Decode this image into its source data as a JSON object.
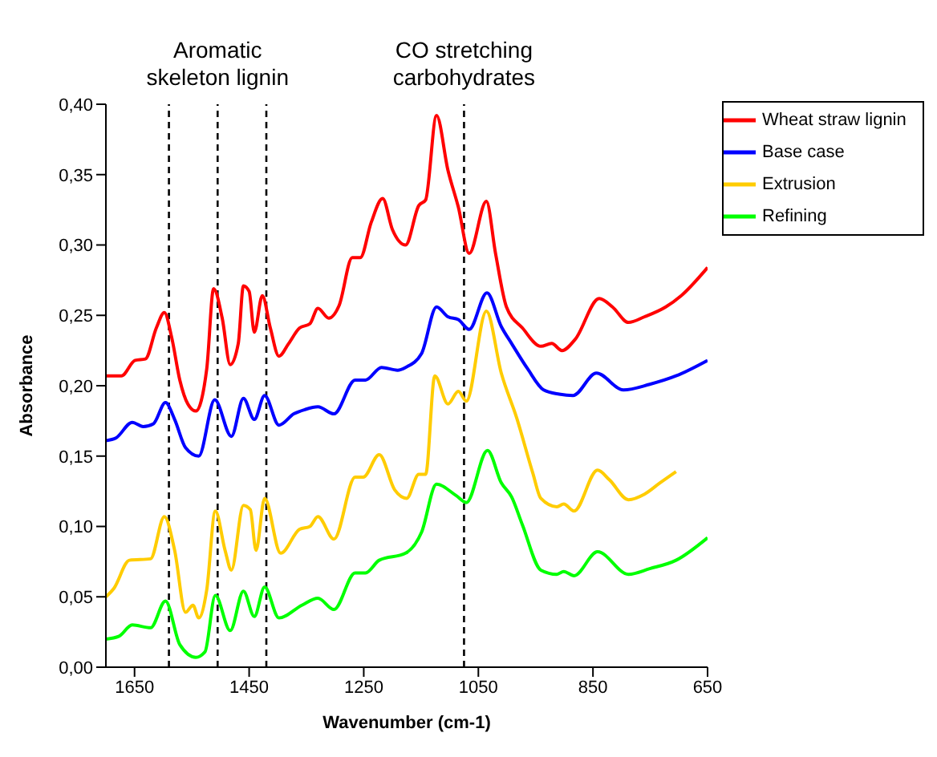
{
  "chart_data": {
    "type": "line",
    "xlabel": "Wavenumber (cm-1)",
    "ylabel": "Absorbance",
    "xlim": [
      1700,
      650
    ],
    "xticks": [
      1650,
      1450,
      1250,
      1050,
      850,
      650
    ],
    "ylim": [
      0,
      0.4
    ],
    "yticks": [
      {
        "value": 0,
        "label": "0,00"
      },
      {
        "value": 0.05,
        "label": "0,05"
      },
      {
        "value": 0.1,
        "label": "0,10"
      },
      {
        "value": 0.15,
        "label": "0,15"
      },
      {
        "value": 0.2,
        "label": "0,20"
      },
      {
        "value": 0.25,
        "label": "0,25"
      },
      {
        "value": 0.3,
        "label": "0,30"
      },
      {
        "value": 0.35,
        "label": "0,35"
      },
      {
        "value": 0.4,
        "label": "0,40"
      }
    ],
    "legend": "top right",
    "grid": false,
    "marker": "none",
    "line_style": "solid",
    "ref_lines": [
      {
        "axis": "x",
        "value": 1590,
        "label": null,
        "line_style": "dashed",
        "color": "#000000"
      },
      {
        "axis": "x",
        "value": 1505,
        "label": "Aromatic skeleton lignin",
        "line_style": "dashed",
        "color": "#000000"
      },
      {
        "axis": "x",
        "value": 1420,
        "label": null,
        "line_style": "dashed",
        "color": "#000000"
      },
      {
        "axis": "x",
        "value": 1075,
        "label": "CO stretching carbohydrates",
        "line_style": "dashed",
        "color": "#000000"
      }
    ],
    "series": [
      {
        "name": "Wheat straw lignin",
        "color": "#ff0000",
        "x": [
          1700,
          1673,
          1649,
          1631,
          1612,
          1598,
          1585,
          1571,
          1557,
          1543,
          1524,
          1512,
          1497,
          1483,
          1469,
          1460,
          1450,
          1441,
          1427,
          1413,
          1398,
          1381,
          1362,
          1344,
          1330,
          1311,
          1293,
          1270,
          1256,
          1237,
          1217,
          1200,
          1177,
          1154,
          1142,
          1123,
          1103,
          1085,
          1066,
          1036,
          1020,
          1001,
          973,
          941,
          922,
          904,
          881,
          839,
          816,
          788,
          760,
          723,
          696,
          650
        ],
        "values": [
          0.207,
          0.207,
          0.218,
          0.219,
          0.241,
          0.252,
          0.234,
          0.204,
          0.187,
          0.182,
          0.212,
          0.269,
          0.248,
          0.215,
          0.23,
          0.271,
          0.267,
          0.238,
          0.264,
          0.241,
          0.221,
          0.23,
          0.241,
          0.244,
          0.255,
          0.248,
          0.257,
          0.291,
          0.291,
          0.316,
          0.333,
          0.311,
          0.3,
          0.328,
          0.332,
          0.392,
          0.353,
          0.327,
          0.294,
          0.331,
          0.294,
          0.256,
          0.241,
          0.228,
          0.23,
          0.225,
          0.233,
          0.262,
          0.256,
          0.245,
          0.249,
          0.256,
          0.264,
          0.284
        ]
      },
      {
        "name": "Base case",
        "color": "#0000ff",
        "x": [
          1700,
          1682,
          1654,
          1635,
          1617,
          1596,
          1580,
          1561,
          1538,
          1510,
          1481,
          1460,
          1441,
          1423,
          1398,
          1372,
          1353,
          1330,
          1302,
          1265,
          1247,
          1219,
          1191,
          1177,
          1149,
          1123,
          1103,
          1085,
          1066,
          1035,
          1010,
          992,
          964,
          936,
          909,
          885,
          844,
          797,
          751,
          705,
          650
        ],
        "values": [
          0.161,
          0.163,
          0.174,
          0.171,
          0.173,
          0.188,
          0.176,
          0.156,
          0.15,
          0.19,
          0.164,
          0.191,
          0.176,
          0.193,
          0.172,
          0.18,
          0.183,
          0.185,
          0.18,
          0.204,
          0.204,
          0.213,
          0.211,
          0.213,
          0.223,
          0.256,
          0.249,
          0.247,
          0.24,
          0.266,
          0.242,
          0.23,
          0.212,
          0.197,
          0.194,
          0.193,
          0.209,
          0.197,
          0.201,
          0.207,
          0.218
        ]
      },
      {
        "name": "Extrusion",
        "color": "#ffcc00",
        "x": [
          1700,
          1686,
          1659,
          1622,
          1598,
          1580,
          1561,
          1548,
          1538,
          1524,
          1509,
          1492,
          1481,
          1460,
          1448,
          1438,
          1423,
          1395,
          1362,
          1344,
          1330,
          1302,
          1265,
          1251,
          1223,
          1196,
          1175,
          1154,
          1142,
          1126,
          1103,
          1085,
          1071,
          1036,
          1010,
          983,
          955,
          941,
          913,
          901,
          883,
          842,
          821,
          788,
          760,
          733,
          705
        ],
        "values": [
          0.05,
          0.056,
          0.076,
          0.077,
          0.107,
          0.083,
          0.039,
          0.044,
          0.035,
          0.055,
          0.111,
          0.083,
          0.069,
          0.115,
          0.112,
          0.083,
          0.12,
          0.081,
          0.098,
          0.1,
          0.107,
          0.091,
          0.135,
          0.135,
          0.151,
          0.126,
          0.12,
          0.137,
          0.137,
          0.207,
          0.187,
          0.196,
          0.189,
          0.253,
          0.209,
          0.177,
          0.138,
          0.12,
          0.114,
          0.116,
          0.111,
          0.14,
          0.133,
          0.119,
          0.123,
          0.131,
          0.139
        ]
      },
      {
        "name": "Refining",
        "color": "#00ff00",
        "x": [
          1700,
          1677,
          1654,
          1622,
          1596,
          1571,
          1543,
          1527,
          1509,
          1483,
          1460,
          1441,
          1423,
          1398,
          1358,
          1330,
          1302,
          1265,
          1247,
          1223,
          1177,
          1149,
          1123,
          1089,
          1071,
          1034,
          1010,
          992,
          973,
          941,
          913,
          901,
          883,
          842,
          788,
          751,
          705,
          650
        ],
        "values": [
          0.02,
          0.022,
          0.03,
          0.028,
          0.047,
          0.016,
          0.007,
          0.011,
          0.051,
          0.026,
          0.054,
          0.036,
          0.057,
          0.035,
          0.044,
          0.049,
          0.041,
          0.067,
          0.067,
          0.076,
          0.081,
          0.096,
          0.13,
          0.122,
          0.117,
          0.154,
          0.131,
          0.121,
          0.101,
          0.069,
          0.066,
          0.068,
          0.065,
          0.082,
          0.066,
          0.07,
          0.076,
          0.092
        ]
      }
    ]
  }
}
